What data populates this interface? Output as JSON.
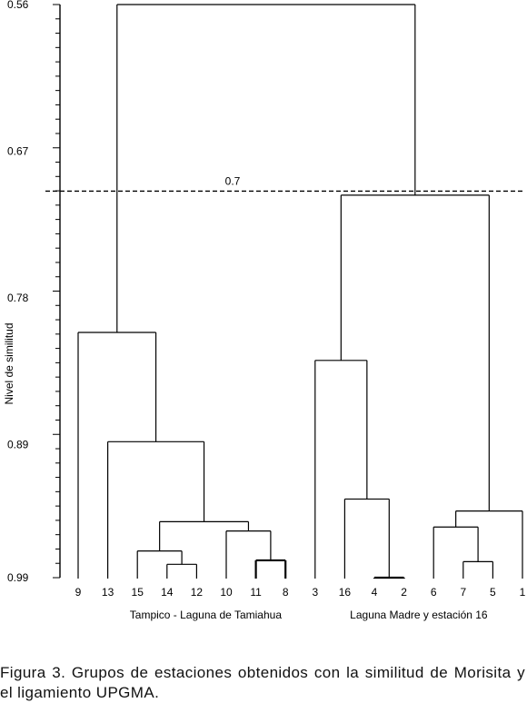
{
  "chart_data": {
    "type": "dendrogram",
    "ylabel": "Nivel de similitud",
    "y_ticks": [
      "0.56",
      "0.67",
      "0.78",
      "0.89",
      "0.99"
    ],
    "y_tick_values": [
      0.56,
      0.67,
      0.78,
      0.89,
      0.99
    ],
    "ylim": [
      0.56,
      0.99
    ],
    "leaves": [
      "9",
      "13",
      "15",
      "14",
      "12",
      "10",
      "11",
      "8",
      "3",
      "16",
      "4",
      "2",
      "6",
      "7",
      "5",
      "1"
    ],
    "cut_line": {
      "value": 0.7,
      "label": "0.7"
    },
    "merges": [
      {
        "a": "14",
        "b": "12",
        "height": 0.98
      },
      {
        "a": "11",
        "b": "8",
        "height": 0.977
      },
      {
        "a": "7",
        "b": "5",
        "height": 0.978
      },
      {
        "a": "15",
        "b": "(14,12)",
        "height": 0.97
      },
      {
        "a": "10",
        "b": "(11,8)",
        "height": 0.955
      },
      {
        "a": "6",
        "b": "(7,5)",
        "height": 0.952
      },
      {
        "a": "4",
        "b": "2",
        "height": 0.99
      },
      {
        "a": "(15,14,12)",
        "b": "(10,11,8)",
        "height": 0.948
      },
      {
        "a": "16",
        "b": "(4,2)",
        "height": 0.931
      },
      {
        "a": "(6,7,5)",
        "b": "1",
        "height": 0.94
      },
      {
        "a": "13",
        "b": "(15,14,12,10,11,8)",
        "height": 0.888
      },
      {
        "a": "3",
        "b": "(16,4,2)",
        "height": 0.827
      },
      {
        "a": "9",
        "b": "(13,...)",
        "height": 0.806
      },
      {
        "a": "(3,16,4,2)",
        "b": "(6,7,5,1)",
        "height": 0.703
      },
      {
        "a": "Tampico group",
        "b": "Laguna Madre group",
        "height": 0.56
      }
    ],
    "groups": [
      {
        "label": "Tampico - Laguna de Tamiahua"
      },
      {
        "label": "Laguna Madre y estación 16"
      }
    ]
  },
  "caption": "Figura 3. Grupos de estaciones obtenidos con la similitud de Morisita y el ligamiento UPGMA."
}
